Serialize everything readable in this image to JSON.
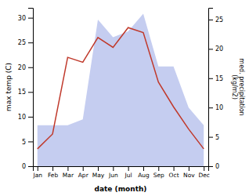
{
  "chart_data": {
    "type": "line",
    "categories": [
      "Jan",
      "Feb",
      "Mar",
      "Apr",
      "May",
      "Jun",
      "Jul",
      "Aug",
      "Sep",
      "Oct",
      "Nov",
      "Dec"
    ],
    "xlabel": "date (month)",
    "ylabel": "max temp (C)",
    "y2label": "med. precipitation\n(kg/m2)",
    "series": [
      {
        "type": "area",
        "axis": "y2",
        "color": "#c5cdf0",
        "values": [
          7.0,
          7.0,
          7.0,
          8.0,
          25.0,
          22.0,
          23.0,
          26.0,
          17.0,
          17.0,
          10.0,
          7.0
        ]
      },
      {
        "type": "line",
        "color": "#c0392b",
        "values": [
          3.5,
          6.5,
          22.0,
          21.0,
          26.0,
          24.0,
          28.0,
          27.0,
          17.0,
          12.0,
          7.5,
          3.5
        ]
      }
    ],
    "ylim": [
      0,
      32
    ],
    "yticks": [
      0,
      5,
      10,
      15,
      20,
      25,
      30
    ],
    "y2lim": [
      0,
      27
    ],
    "y2ticks": [
      0,
      5,
      10,
      15,
      20,
      25
    ],
    "grid": false
  }
}
